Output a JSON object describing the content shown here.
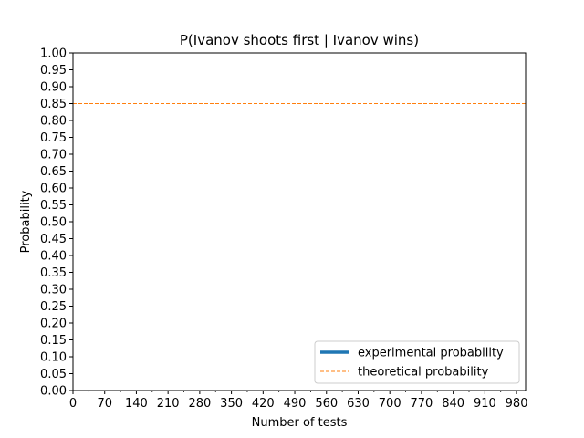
{
  "chart_data": {
    "type": "line",
    "title": "P(Ivanov shoots first | Ivanov wins)",
    "xlabel": "Number of tests",
    "ylabel": "Probability",
    "xlim": [
      0,
      1000
    ],
    "ylim": [
      0,
      1.0
    ],
    "x_ticks": [
      0,
      70,
      140,
      210,
      280,
      350,
      420,
      490,
      560,
      630,
      700,
      770,
      840,
      910,
      980
    ],
    "x_tick_labels": [
      "0",
      "70",
      "140",
      "210",
      "280",
      "350",
      "420",
      "490",
      "560",
      "630",
      "700",
      "770",
      "840",
      "910",
      "980"
    ],
    "x_minor_step": 35,
    "y_ticks": [
      0,
      0.05,
      0.1,
      0.15,
      0.2,
      0.25,
      0.3,
      0.35,
      0.4,
      0.45,
      0.5,
      0.55,
      0.6,
      0.65,
      0.7,
      0.75,
      0.8,
      0.85,
      0.9,
      0.95,
      1.0
    ],
    "y_tick_labels": [
      "0.00",
      "0.05",
      "0.10",
      "0.15",
      "0.20",
      "0.25",
      "0.30",
      "0.35",
      "0.40",
      "0.45",
      "0.50",
      "0.55",
      "0.60",
      "0.65",
      "0.70",
      "0.75",
      "0.80",
      "0.85",
      "0.90",
      "0.95",
      "1.00"
    ],
    "grid": false,
    "legend_position": "lower-right",
    "series": [
      {
        "name": "experimental probability",
        "color": "#1f77b4",
        "style": "solid",
        "x": [],
        "y": []
      },
      {
        "name": "theoretical probability",
        "color": "#ff7f0e",
        "style": "dashed",
        "x": [
          0,
          1000
        ],
        "y": [
          0.85,
          0.85
        ]
      }
    ]
  }
}
